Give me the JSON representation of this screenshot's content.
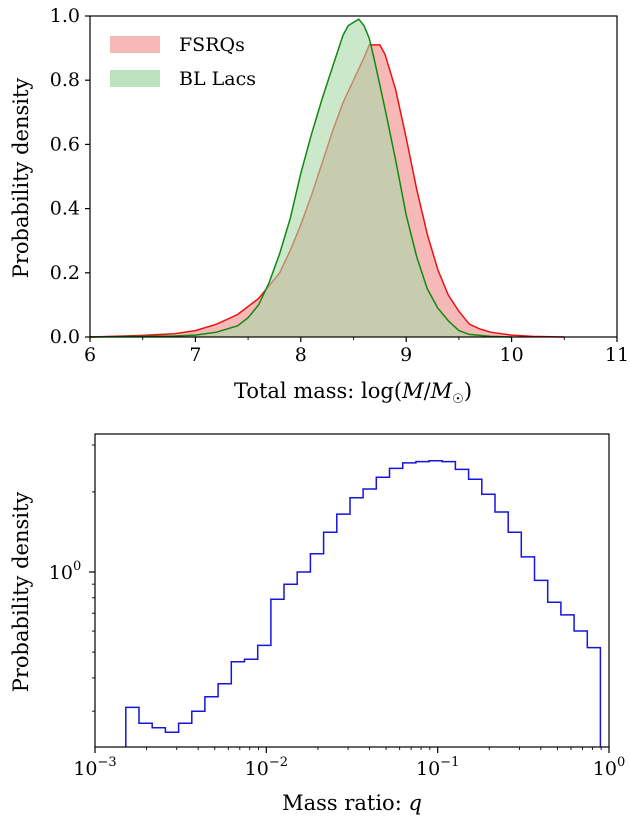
{
  "chart_data": [
    {
      "type": "area",
      "xlabel": "Total mass: log(M/M☉)",
      "ylabel": "Probability density",
      "xlim": [
        6,
        11
      ],
      "ylim": [
        0,
        1.0
      ],
      "xticks": [
        "6",
        "7",
        "8",
        "9",
        "10",
        "11"
      ],
      "yticks": [
        "0.0",
        "0.2",
        "0.4",
        "0.6",
        "0.8",
        "1.0"
      ],
      "legend_position": "top-left",
      "series": [
        {
          "name": "FSRQs",
          "fill": "#f4a0a0",
          "edge": "#ee1111",
          "x": [
            6.0,
            6.5,
            6.8,
            7.0,
            7.2,
            7.4,
            7.6,
            7.8,
            7.9,
            8.0,
            8.1,
            8.2,
            8.3,
            8.4,
            8.5,
            8.6,
            8.65,
            8.7,
            8.75,
            8.8,
            8.9,
            9.0,
            9.1,
            9.2,
            9.3,
            9.4,
            9.5,
            9.6,
            9.7,
            9.8,
            10.0,
            10.2,
            10.5
          ],
          "y": [
            0.0,
            0.005,
            0.01,
            0.02,
            0.04,
            0.07,
            0.12,
            0.2,
            0.27,
            0.35,
            0.44,
            0.54,
            0.64,
            0.73,
            0.8,
            0.87,
            0.91,
            0.91,
            0.91,
            0.88,
            0.77,
            0.62,
            0.46,
            0.32,
            0.21,
            0.13,
            0.08,
            0.04,
            0.025,
            0.015,
            0.006,
            0.002,
            0.0
          ]
        },
        {
          "name": "BL Lacs",
          "fill": "#a8d8a8",
          "edge": "#118811",
          "x": [
            6.0,
            6.8,
            7.0,
            7.2,
            7.4,
            7.5,
            7.6,
            7.7,
            7.8,
            7.9,
            8.0,
            8.1,
            8.2,
            8.3,
            8.4,
            8.45,
            8.5,
            8.55,
            8.6,
            8.65,
            8.7,
            8.8,
            8.9,
            9.0,
            9.1,
            9.2,
            9.3,
            9.4,
            9.5,
            9.6,
            9.8,
            10.0
          ],
          "y": [
            0.0,
            0.003,
            0.006,
            0.015,
            0.035,
            0.06,
            0.1,
            0.17,
            0.26,
            0.37,
            0.51,
            0.63,
            0.74,
            0.84,
            0.94,
            0.97,
            0.98,
            0.99,
            0.97,
            0.93,
            0.86,
            0.71,
            0.55,
            0.38,
            0.25,
            0.15,
            0.09,
            0.05,
            0.02,
            0.008,
            0.002,
            0.0
          ]
        }
      ]
    },
    {
      "type": "histogram",
      "xlabel": "Mass ratio: q",
      "ylabel": "Probability density",
      "x_scale": "log",
      "y_scale": "log",
      "xlim": [
        0.001,
        1.0
      ],
      "ylim": [
        0.22,
        3.3
      ],
      "xtick_labels": [
        {
          "base": "10",
          "exp": "−3",
          "value": 0.001
        },
        {
          "base": "10",
          "exp": "−2",
          "value": 0.01
        },
        {
          "base": "10",
          "exp": "−1",
          "value": 0.1
        },
        {
          "base": "10",
          "exp": "0",
          "value": 1.0
        }
      ],
      "ytick_labels": [
        {
          "base": "10",
          "exp": "0",
          "value": 1.0
        }
      ],
      "edge": "#1515dd",
      "bins_log10_range": [
        -2.82,
        -0.05
      ],
      "values": [
        0.31,
        0.27,
        0.26,
        0.25,
        0.27,
        0.3,
        0.34,
        0.38,
        0.46,
        0.47,
        0.53,
        0.79,
        0.9,
        1.0,
        1.17,
        1.41,
        1.65,
        1.9,
        2.05,
        2.27,
        2.45,
        2.57,
        2.6,
        2.62,
        2.6,
        2.43,
        2.23,
        1.96,
        1.68,
        1.41,
        1.14,
        0.93,
        0.77,
        0.69,
        0.6,
        0.52
      ],
      "n_bins": 36
    }
  ]
}
